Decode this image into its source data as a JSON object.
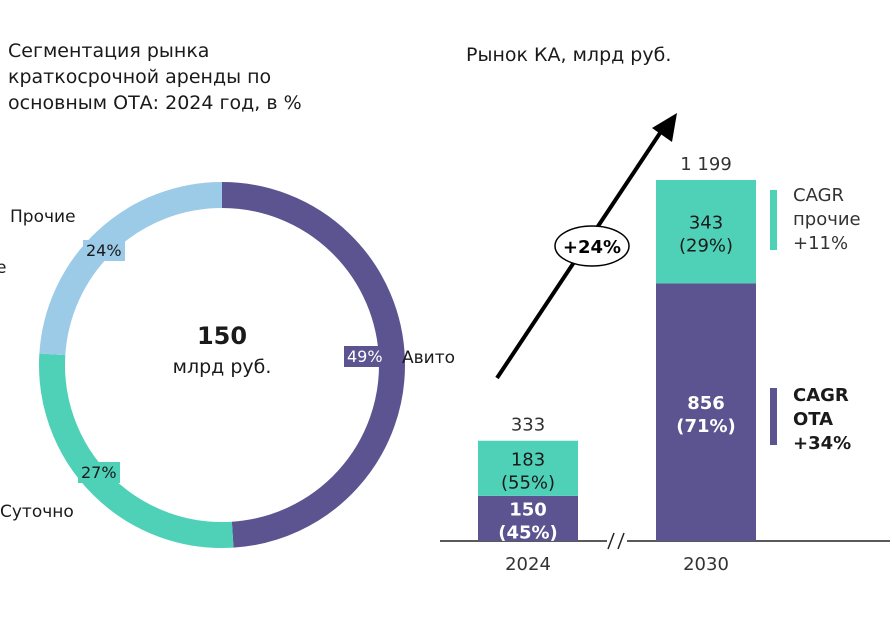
{
  "colors": {
    "avito": "#5c5490",
    "daily": "#4fd1b8",
    "other": "#9ccbe8",
    "ota": "#5c5490",
    "others_bar": "#4fd1b8"
  },
  "fragment": "е",
  "chart_data": [
    {
      "type": "pie",
      "title": "Сегментация рынка краткосрочной аренды по основным ОТА: 2024 год, в %",
      "center_value": "150",
      "center_unit": "млрд руб.",
      "slices": [
        {
          "name": "Авито",
          "value": 49,
          "label": "49%"
        },
        {
          "name": "Суточно",
          "value": 27,
          "label": "27%"
        },
        {
          "name": "Прочие",
          "value": 24,
          "label": "24%"
        }
      ]
    },
    {
      "type": "bar",
      "title": "Рынок КА, млрд руб.",
      "categories": [
        "2024",
        "2030"
      ],
      "totals": [
        "333",
        "1 199"
      ],
      "total_values": [
        333,
        1199
      ],
      "series": [
        {
          "name": "ОТА",
          "values": [
            150,
            856
          ],
          "labels": [
            "150",
            "856"
          ],
          "shares": [
            "(45%)",
            "(71%)"
          ]
        },
        {
          "name": "прочие",
          "values": [
            183,
            343
          ],
          "labels": [
            "183",
            "343"
          ],
          "shares": [
            "(55%)",
            "(29%)"
          ]
        }
      ],
      "growth_label": "+24%",
      "annotations": {
        "others": [
          "CAGR",
          "прочие",
          "+11%"
        ],
        "ota": [
          "CAGR",
          "OTA",
          "+34%"
        ]
      },
      "ylim": [
        0,
        1199
      ]
    }
  ]
}
